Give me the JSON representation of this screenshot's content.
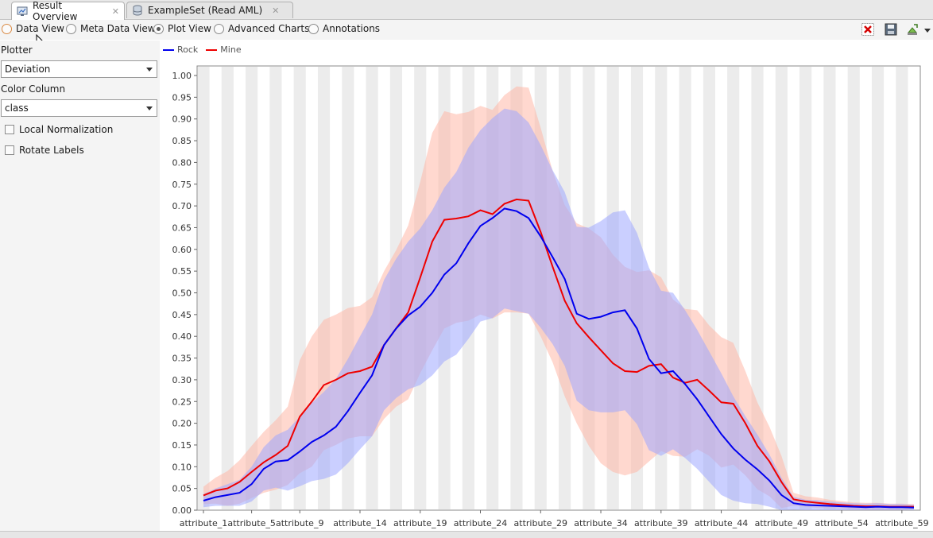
{
  "tabs": [
    {
      "label": "Result Overview",
      "icon": "result-overview-icon",
      "active": true
    },
    {
      "label": "ExampleSet (Read AML)",
      "icon": "database-icon",
      "active": false
    }
  ],
  "view_modes": [
    {
      "label": "Data View",
      "selected": false
    },
    {
      "label": "Meta Data View",
      "selected": false
    },
    {
      "label": "Plot View",
      "selected": true
    },
    {
      "label": "Advanced Charts",
      "selected": false
    },
    {
      "label": "Annotations",
      "selected": false
    }
  ],
  "toolbar_icons": [
    "close-red-x-icon",
    "save-icon",
    "export-icon",
    "dropdown-arrow-icon"
  ],
  "settings": {
    "plotter_label": "Plotter",
    "plotter_value": "Deviation",
    "color_column_label": "Color Column",
    "color_column_value": "class",
    "local_normalization_label": "Local Normalization",
    "local_normalization_checked": false,
    "rotate_labels_label": "Rotate Labels",
    "rotate_labels_checked": false
  },
  "chart_data": {
    "type": "line",
    "title": "",
    "xlabel": "",
    "ylabel": "",
    "ylim": [
      0,
      1
    ],
    "yticks": [
      "0.00",
      "0.05",
      "0.10",
      "0.15",
      "0.20",
      "0.25",
      "0.30",
      "0.35",
      "0.40",
      "0.45",
      "0.50",
      "0.55",
      "0.60",
      "0.65",
      "0.70",
      "0.75",
      "0.80",
      "0.85",
      "0.90",
      "0.95",
      "1.00"
    ],
    "x_tick_labels": [
      "attribute_1",
      "attribute_5",
      "attribute_9",
      "attribute_14",
      "attribute_19",
      "attribute_24",
      "attribute_29",
      "attribute_34",
      "attribute_39",
      "attribute_44",
      "attribute_49",
      "attribute_54",
      "attribute_59"
    ],
    "x_tick_index": [
      1,
      5,
      9,
      14,
      19,
      24,
      29,
      34,
      39,
      44,
      49,
      54,
      59
    ],
    "x_count": 60,
    "legend_position": "top-left",
    "series": [
      {
        "name": "Rock",
        "color": "#0000ee",
        "band_color": "#9ea8ff",
        "values": [
          0.022,
          0.03,
          0.035,
          0.04,
          0.06,
          0.095,
          0.112,
          0.115,
          0.135,
          0.157,
          0.172,
          0.192,
          0.228,
          0.27,
          0.31,
          0.38,
          0.418,
          0.448,
          0.468,
          0.5,
          0.542,
          0.568,
          0.614,
          0.654,
          0.672,
          0.694,
          0.688,
          0.672,
          0.63,
          0.582,
          0.532,
          0.452,
          0.44,
          0.445,
          0.455,
          0.46,
          0.418,
          0.348,
          0.315,
          0.32,
          0.29,
          0.255,
          0.215,
          0.175,
          0.142,
          0.116,
          0.094,
          0.068,
          0.035,
          0.016,
          0.012,
          0.011,
          0.01,
          0.009,
          0.008,
          0.007,
          0.008,
          0.007,
          0.007,
          0.006
        ],
        "std": [
          0.015,
          0.02,
          0.025,
          0.03,
          0.04,
          0.05,
          0.06,
          0.07,
          0.08,
          0.09,
          0.1,
          0.11,
          0.12,
          0.13,
          0.14,
          0.15,
          0.16,
          0.17,
          0.18,
          0.19,
          0.2,
          0.21,
          0.22,
          0.22,
          0.23,
          0.23,
          0.23,
          0.22,
          0.21,
          0.2,
          0.2,
          0.2,
          0.21,
          0.22,
          0.23,
          0.23,
          0.22,
          0.21,
          0.19,
          0.18,
          0.17,
          0.16,
          0.15,
          0.14,
          0.12,
          0.1,
          0.08,
          0.06,
          0.04,
          0.015,
          0.012,
          0.012,
          0.01,
          0.009,
          0.008,
          0.008,
          0.008,
          0.007,
          0.007,
          0.006
        ]
      },
      {
        "name": "Mine",
        "color": "#ee0000",
        "band_color": "#ffb8a8",
        "values": [
          0.034,
          0.045,
          0.05,
          0.065,
          0.088,
          0.11,
          0.127,
          0.148,
          0.215,
          0.25,
          0.288,
          0.3,
          0.315,
          0.32,
          0.33,
          0.38,
          0.418,
          0.455,
          0.535,
          0.618,
          0.668,
          0.671,
          0.676,
          0.69,
          0.681,
          0.705,
          0.715,
          0.712,
          0.64,
          0.56,
          0.482,
          0.43,
          0.398,
          0.368,
          0.338,
          0.32,
          0.318,
          0.332,
          0.336,
          0.305,
          0.293,
          0.3,
          0.275,
          0.248,
          0.245,
          0.2,
          0.148,
          0.112,
          0.065,
          0.025,
          0.02,
          0.017,
          0.014,
          0.012,
          0.01,
          0.009,
          0.009,
          0.008,
          0.008,
          0.008
        ],
        "std": [
          0.02,
          0.03,
          0.04,
          0.05,
          0.06,
          0.07,
          0.08,
          0.09,
          0.13,
          0.15,
          0.15,
          0.15,
          0.15,
          0.15,
          0.16,
          0.17,
          0.18,
          0.2,
          0.22,
          0.25,
          0.25,
          0.24,
          0.24,
          0.24,
          0.24,
          0.25,
          0.26,
          0.26,
          0.24,
          0.22,
          0.22,
          0.23,
          0.25,
          0.26,
          0.25,
          0.24,
          0.23,
          0.22,
          0.2,
          0.18,
          0.17,
          0.16,
          0.15,
          0.15,
          0.14,
          0.12,
          0.1,
          0.08,
          0.06,
          0.015,
          0.012,
          0.012,
          0.01,
          0.009,
          0.008,
          0.008,
          0.008,
          0.007,
          0.007,
          0.006
        ]
      }
    ]
  }
}
